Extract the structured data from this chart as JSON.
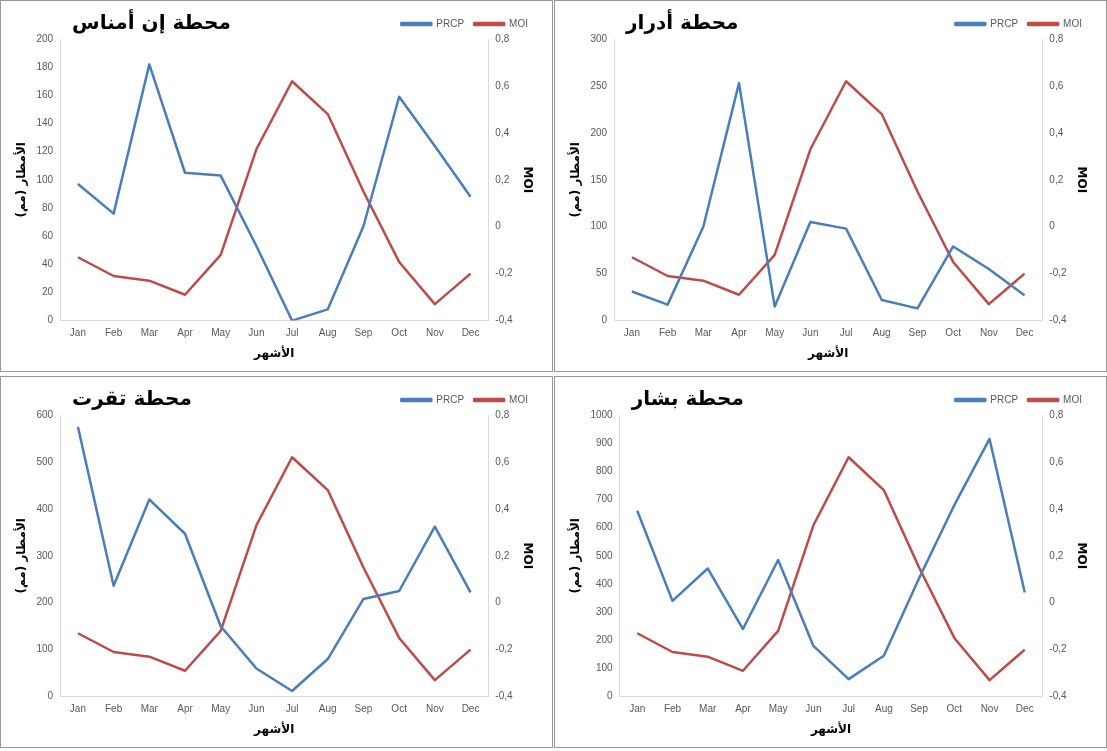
{
  "chart_data": [
    {
      "type": "line",
      "title": "محطة إن أمناس",
      "xlabel": "الأشهر",
      "ylabel": "الأمطار (مم)",
      "y2label": "MOI",
      "legend": "top right",
      "marker": "none",
      "categories": [
        "Jan",
        "Feb",
        "Mar",
        "Apr",
        "May",
        "Jun",
        "Jul",
        "Aug",
        "Sep",
        "Oct",
        "Nov",
        "Dec"
      ],
      "series": [
        {
          "name": "PRCP",
          "color": "#4a7ebb",
          "values": [
            97,
            76,
            182,
            105,
            103,
            53,
            0,
            8,
            67,
            159,
            124,
            88
          ]
        },
        {
          "name": "MOI",
          "color": "#be4b48",
          "axis": "y2",
          "values": [
            -0.13,
            -0.21,
            -0.23,
            -0.29,
            -0.12,
            0.33,
            0.62,
            0.48,
            0.15,
            -0.15,
            -0.33,
            -0.2
          ]
        }
      ],
      "ylim": [
        0,
        200
      ],
      "yticks": [
        0,
        20,
        40,
        60,
        80,
        100,
        120,
        140,
        160,
        180,
        200
      ],
      "y2lim": [
        -0.4,
        0.8
      ],
      "y2ticks": [
        {
          "value": -0.4,
          "label": "-0,4"
        },
        {
          "value": -0.2,
          "label": "-0,2"
        },
        {
          "value": 0,
          "label": "0"
        },
        {
          "value": 0.2,
          "label": "0,2"
        },
        {
          "value": 0.4,
          "label": "0,4"
        },
        {
          "value": 0.6,
          "label": "0,6"
        },
        {
          "value": 0.8,
          "label": "0,8"
        }
      ]
    },
    {
      "type": "line",
      "title": "محطة أدرار",
      "xlabel": "الأشهر",
      "ylabel": "الأمطار (مم)",
      "y2label": "MOI",
      "legend": "top right",
      "marker": "none",
      "categories": [
        "Jan",
        "Feb",
        "Mar",
        "Apr",
        "May",
        "Jun",
        "Jul",
        "Aug",
        "Sep",
        "Oct",
        "Nov",
        "Dec"
      ],
      "series": [
        {
          "name": "PRCP",
          "color": "#4a7ebb",
          "values": [
            31,
            17,
            100,
            253,
            15,
            105,
            98,
            22,
            13,
            79,
            55,
            27
          ]
        },
        {
          "name": "MOI",
          "color": "#be4b48",
          "axis": "y2",
          "values": [
            -0.13,
            -0.21,
            -0.23,
            -0.29,
            -0.12,
            0.33,
            0.62,
            0.48,
            0.15,
            -0.15,
            -0.33,
            -0.2
          ]
        }
      ],
      "ylim": [
        0,
        300
      ],
      "yticks": [
        0,
        50,
        100,
        150,
        200,
        250,
        300
      ],
      "y2lim": [
        -0.4,
        0.8
      ],
      "y2ticks": [
        {
          "value": -0.4,
          "label": "-0,4"
        },
        {
          "value": -0.2,
          "label": "-0,2"
        },
        {
          "value": 0,
          "label": "0"
        },
        {
          "value": 0.2,
          "label": "0,2"
        },
        {
          "value": 0.4,
          "label": "0,4"
        },
        {
          "value": 0.6,
          "label": "0,6"
        },
        {
          "value": 0.8,
          "label": "0,8"
        }
      ]
    },
    {
      "type": "line",
      "title": "محطة تقرت",
      "xlabel": "الأشهر",
      "ylabel": "الأمطار (مم)",
      "y2label": "MOI",
      "legend": "top right",
      "marker": "none",
      "categories": [
        "Jan",
        "Feb",
        "Mar",
        "Apr",
        "May",
        "Jun",
        "Jul",
        "Aug",
        "Sep",
        "Oct",
        "Nov",
        "Dec"
      ],
      "series": [
        {
          "name": "PRCP",
          "color": "#4a7ebb",
          "values": [
            575,
            236,
            420,
            347,
            150,
            60,
            12,
            80,
            208,
            225,
            362,
            222
          ]
        },
        {
          "name": "MOI",
          "color": "#be4b48",
          "axis": "y2",
          "values": [
            -0.13,
            -0.21,
            -0.23,
            -0.29,
            -0.12,
            0.33,
            0.62,
            0.48,
            0.15,
            -0.15,
            -0.33,
            -0.2
          ]
        }
      ],
      "ylim": [
        0,
        600
      ],
      "yticks": [
        0,
        100,
        200,
        300,
        400,
        500,
        600
      ],
      "y2lim": [
        -0.4,
        0.8
      ],
      "y2ticks": [
        {
          "value": -0.4,
          "label": "-0,4"
        },
        {
          "value": -0.2,
          "label": "-0,2"
        },
        {
          "value": 0,
          "label": "0"
        },
        {
          "value": 0.2,
          "label": "0,2"
        },
        {
          "value": 0.4,
          "label": "0,4"
        },
        {
          "value": 0.6,
          "label": "0,6"
        },
        {
          "value": 0.8,
          "label": "0,8"
        }
      ]
    },
    {
      "type": "line",
      "title": "محطة بشار",
      "xlabel": "الأشهر",
      "ylabel": "الأمطار (مم)",
      "y2label": "MOI",
      "legend": "top right",
      "marker": "none",
      "categories": [
        "Jan",
        "Feb",
        "Mar",
        "Apr",
        "May",
        "Jun",
        "Jul",
        "Aug",
        "Sep",
        "Oct",
        "Nov",
        "Dec"
      ],
      "series": [
        {
          "name": "PRCP",
          "color": "#4a7ebb",
          "values": [
            660,
            340,
            455,
            240,
            485,
            180,
            62,
            145,
            420,
            680,
            915,
            370
          ]
        },
        {
          "name": "MOI",
          "color": "#be4b48",
          "axis": "y2",
          "values": [
            -0.13,
            -0.21,
            -0.23,
            -0.29,
            -0.12,
            0.33,
            0.62,
            0.48,
            0.15,
            -0.15,
            -0.33,
            -0.2
          ]
        }
      ],
      "ylim": [
        0,
        1000
      ],
      "yticks": [
        0,
        100,
        200,
        300,
        400,
        500,
        600,
        700,
        800,
        900,
        1000
      ],
      "y2lim": [
        -0.4,
        0.8
      ],
      "y2ticks": [
        {
          "value": -0.4,
          "label": "-0,4"
        },
        {
          "value": -0.2,
          "label": "-0,2"
        },
        {
          "value": 0,
          "label": "0"
        },
        {
          "value": 0.2,
          "label": "0,2"
        },
        {
          "value": 0.4,
          "label": "0,4"
        },
        {
          "value": 0.6,
          "label": "0,6"
        },
        {
          "value": 0.8,
          "label": "0,8"
        }
      ]
    }
  ]
}
